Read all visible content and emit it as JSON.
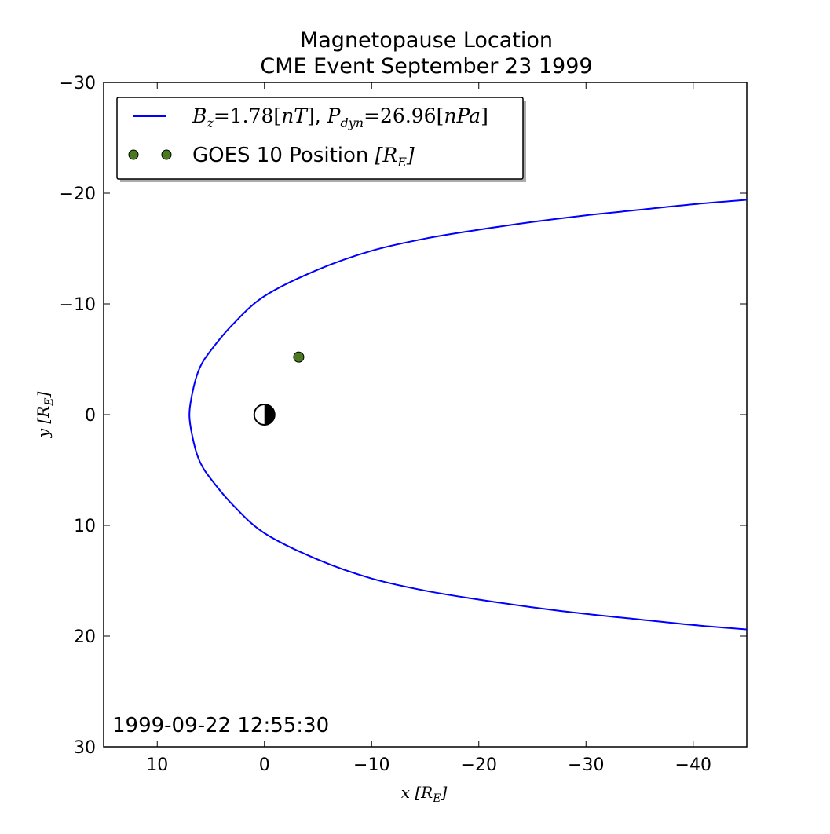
{
  "chart_data": {
    "type": "line",
    "title_line1": "Magnetopause Location",
    "title_line2": "CME Event September 23 1999",
    "xlabel": "x [R_E]",
    "ylabel": "y [R_E]",
    "xlim": [
      15,
      -45
    ],
    "ylim": [
      -30,
      30
    ],
    "x_ticks": [
      10,
      0,
      -10,
      -20,
      -30,
      -40
    ],
    "x_tick_labels": [
      "10",
      "0",
      "−10",
      "−20",
      "−30",
      "−40"
    ],
    "y_ticks": [
      -30,
      -20,
      -10,
      0,
      10,
      20,
      30
    ],
    "y_tick_labels": [
      "−30",
      "−20",
      "−10",
      "0",
      "10",
      "20",
      "30"
    ],
    "grid": false,
    "legend_position": "top-left",
    "series": [
      {
        "name": "B_z=1.78[nT], P_dyn=26.96[nPa]",
        "kind": "line",
        "color": "#0000ff",
        "standoff_x": 7.0,
        "flank_y_at_x0": 10.7,
        "points": [
          {
            "x": -45,
            "y": -19.4
          },
          {
            "x": -40,
            "y": -19.0
          },
          {
            "x": -35,
            "y": -18.5
          },
          {
            "x": -30,
            "y": -18.0
          },
          {
            "x": -25,
            "y": -17.4
          },
          {
            "x": -20,
            "y": -16.7
          },
          {
            "x": -15,
            "y": -15.9
          },
          {
            "x": -10,
            "y": -14.8
          },
          {
            "x": -5,
            "y": -13.1
          },
          {
            "x": 0,
            "y": -10.7
          },
          {
            "x": 3,
            "y": -8.1
          },
          {
            "x": 5,
            "y": -5.8
          },
          {
            "x": 6,
            "y": -4.3
          },
          {
            "x": 6.6,
            "y": -2.5
          },
          {
            "x": 7.0,
            "y": 0
          },
          {
            "x": 6.6,
            "y": 2.5
          },
          {
            "x": 6,
            "y": 4.3
          },
          {
            "x": 5,
            "y": 5.8
          },
          {
            "x": 3,
            "y": 8.1
          },
          {
            "x": 0,
            "y": 10.7
          },
          {
            "x": -5,
            "y": 13.1
          },
          {
            "x": -10,
            "y": 14.8
          },
          {
            "x": -15,
            "y": 15.9
          },
          {
            "x": -20,
            "y": 16.7
          },
          {
            "x": -25,
            "y": 17.4
          },
          {
            "x": -30,
            "y": 18.0
          },
          {
            "x": -35,
            "y": 18.5
          },
          {
            "x": -40,
            "y": 19.0
          },
          {
            "x": -45,
            "y": 19.4
          }
        ]
      },
      {
        "name": "GOES 10 Position [R_E]",
        "kind": "scatter",
        "color": "#4a7a20",
        "points": [
          {
            "x": -3.2,
            "y": -5.2
          }
        ]
      }
    ],
    "earth": {
      "x": 0,
      "y": 0
    },
    "annotation": "1999-09-22 12:55:30"
  }
}
